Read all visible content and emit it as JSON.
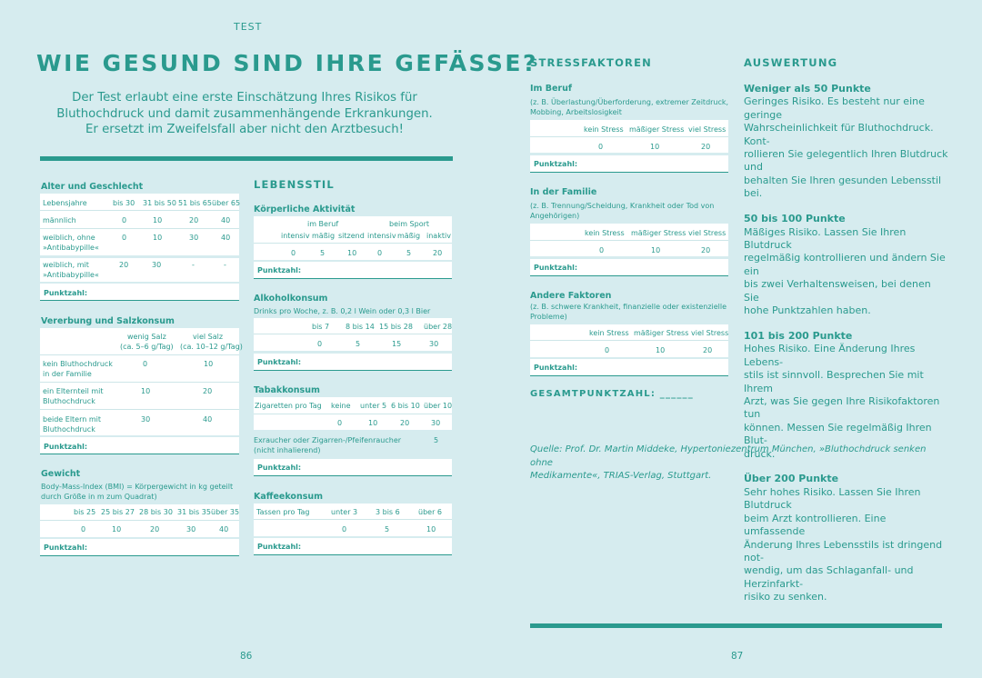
{
  "header": {
    "label": "TEST",
    "title": "WIE GESUND SIND IHRE GEFÄSSE?",
    "intro": [
      "Der Test erlaubt eine erste Einschätzung Ihres Risikos für",
      "Bluthochdruck und damit zusammenhängende Erkrankungen.",
      "Er ersetzt im Zweifelsfall aber nicht den Arztbesuch!"
    ]
  },
  "punktzahl": "Punktzahl:",
  "alter": {
    "title": "Alter und Geschlecht",
    "cols": [
      "Lebensjahre",
      "bis 30",
      "31 bis 50",
      "51 bis 65",
      "über 65"
    ],
    "rows": [
      [
        "männlich",
        "0",
        "10",
        "20",
        "40"
      ],
      [
        "weiblich, ohne",
        "»Antibabypille«",
        "0",
        "10",
        "30",
        "40"
      ],
      [
        "weiblich, mit",
        "»Antibabypille«",
        "20",
        "30",
        "-",
        "-"
      ]
    ]
  },
  "vererbung": {
    "title": "Vererbung und Salzkonsum",
    "cols": [
      "wenig Salz",
      "(ca. 5–6 g/Tag)",
      "viel Salz",
      "(ca. 10–12 g/Tag)"
    ],
    "rows": [
      [
        "kein Bluthochdruck",
        "in der Familie",
        "0",
        "10"
      ],
      [
        "ein Elternteil mit",
        "Bluthochdruck",
        "10",
        "20"
      ],
      [
        "beide Eltern mit",
        "Bluthochdruck",
        "30",
        "40"
      ]
    ]
  },
  "gewicht": {
    "title": "Gewicht",
    "desc": [
      "Body-Mass-Index (BMI) = Körpergewicht in kg geteilt",
      "durch Größe in m zum Quadrat)"
    ],
    "cols": [
      "bis 25",
      "25 bis 27",
      "28 bis 30",
      "31 bis 35",
      "über 35"
    ],
    "vals": [
      "0",
      "10",
      "20",
      "30",
      "40"
    ]
  },
  "lebensstil": {
    "title": "LEBENSSTIL"
  },
  "koerper": {
    "title": "Körperliche Aktivität",
    "groups": [
      "im Beruf",
      "beim Sport"
    ],
    "cols": [
      "intensiv",
      "mäßig",
      "sitzend",
      "intensiv",
      "mäßig",
      "inaktiv"
    ],
    "vals": [
      "0",
      "5",
      "10",
      "0",
      "5",
      "20"
    ]
  },
  "alkohol": {
    "title": "Alkoholkonsum",
    "desc": "Drinks pro Woche, z. B. 0,2 l Wein oder 0,3 l Bier",
    "cols": [
      "bis 7",
      "8 bis 14",
      "15 bis 28",
      "über 28"
    ],
    "vals": [
      "0",
      "5",
      "15",
      "30"
    ]
  },
  "tabak": {
    "title": "Tabakkonsum",
    "label": "Zigaretten pro Tag",
    "cols": [
      "keine",
      "unter 5",
      "6 bis 10",
      "über 10"
    ],
    "vals": [
      "0",
      "10",
      "20",
      "30"
    ],
    "ex": [
      "Exraucher oder Zigarren-/Pfeifenraucher",
      "(nicht inhalierend)"
    ],
    "ex_val": "5"
  },
  "kaffee": {
    "title": "Kaffeekonsum",
    "label": "Tassen pro Tag",
    "cols": [
      "unter 3",
      "3 bis 6",
      "über 6"
    ],
    "vals": [
      "0",
      "5",
      "10"
    ]
  },
  "stress": {
    "title": "STRESSFAKTOREN",
    "sections": [
      {
        "title": "Im Beruf",
        "desc": [
          "(z. B. Überlastung/Überforderung, extremer Zeitdruck,",
          "Mobbing, Arbeitslosigkeit"
        ],
        "cols": [
          "kein Stress",
          "mäßiger Stress",
          "viel Stress"
        ],
        "vals": [
          "0",
          "10",
          "20"
        ]
      },
      {
        "title": "In der Familie",
        "desc": [
          "(z. B. Trennung/Scheidung, Krankheit oder Tod von",
          "Angehörigen)"
        ],
        "cols": [
          "kein Stress",
          "mäßiger Stress",
          "viel Stress"
        ],
        "vals": [
          "0",
          "10",
          "20"
        ]
      },
      {
        "title": "Andere Faktoren",
        "desc": [
          "(z. B. schwere Krankheit, finanzielle oder existenzielle",
          "Probleme)"
        ],
        "cols": [
          "kein Stress",
          "mäßiger Stress",
          "viel Stress"
        ],
        "vals": [
          "0",
          "10",
          "20"
        ]
      }
    ],
    "gesamt": "GESAMTPUNKTZAHL: ______"
  },
  "auswertung": {
    "title": "AUSWERTUNG",
    "items": [
      {
        "head": "Weniger als 50 Punkte",
        "lines": [
          "Geringes Risiko. Es besteht nur eine geringe",
          "Wahrscheinlichkeit für Bluthochdruck. Kont-",
          "rollieren Sie gelegentlich Ihren Blutdruck und",
          "behalten Sie Ihren gesunden Lebensstil bei."
        ]
      },
      {
        "head": "50 bis 100 Punkte",
        "lines": [
          "Mäßiges Risiko. Lassen Sie Ihren Blutdruck",
          "regelmäßig kontrollieren und ändern Sie ein",
          "bis zwei Verhaltensweisen, bei denen Sie",
          "hohe Punktzahlen haben."
        ]
      },
      {
        "head": "101 bis 200 Punkte",
        "lines": [
          "Hohes Risiko. Eine Änderung Ihres Lebens-",
          "stils ist sinnvoll. Besprechen Sie mit Ihrem",
          "Arzt, was Sie gegen Ihre Risikofaktoren tun",
          "können. Messen Sie regelmäßig Ihren Blut-",
          "druck."
        ]
      },
      {
        "head": "Über 200 Punkte",
        "lines": [
          "Sehr hohes Risiko. Lassen Sie Ihren Blutdruck",
          "beim Arzt kontrollieren. Eine umfassende",
          "Änderung Ihres Lebensstils ist dringend not-",
          "wendig, um das Schlaganfall- und Herzinfarkt-",
          "risiko zu senken."
        ]
      }
    ]
  },
  "quelle": [
    "Quelle: Prof. Dr. Martin Middeke, Hypertoniezentrum München, »Bluthochdruck senken ohne",
    "Medikamente«, TRIAS-Verlag, Stuttgart."
  ],
  "pages": {
    "left": "86",
    "right": "87"
  }
}
